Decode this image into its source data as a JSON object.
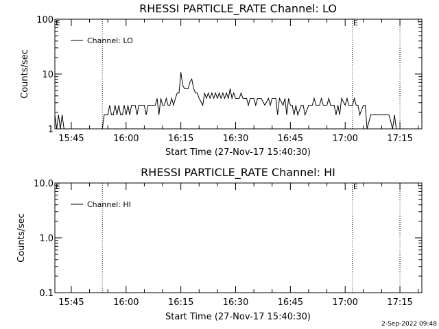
{
  "chart_data": [
    {
      "type": "line",
      "title": "RHESSI PARTICLE_RATE Channel: LO",
      "xlabel": "Start Time (27-Nov-17 15:40:30)",
      "ylabel": "Counts/sec",
      "y_scale": "log",
      "ylim": [
        1,
        100
      ],
      "y_ticks": [
        1,
        10,
        100
      ],
      "y_tick_labels": [
        "1",
        "10",
        "100"
      ],
      "xlim": [
        "15:40:30",
        "17:21:00"
      ],
      "x_ticks": [
        "15:45",
        "16:00",
        "16:15",
        "16:30",
        "16:45",
        "17:00",
        "17:15"
      ],
      "legend": {
        "entries": [
          "Channel: LO"
        ],
        "position": "top-left"
      },
      "markers": [
        {
          "time": "15:40:30",
          "label": "E"
        },
        {
          "time": "15:53:30",
          "label": ""
        },
        {
          "time": "17:02:00",
          "label": "E"
        },
        {
          "time": "17:15:00",
          "label": ""
        }
      ],
      "series": [
        {
          "name": "Channel: LO",
          "x": [
            "15:40:30",
            "15:41:00",
            "15:41:30",
            "15:42:00",
            "15:42:30",
            "15:43:00",
            "15:53:30",
            "15:54:00",
            "15:55:00",
            "15:55:30",
            "15:56:00",
            "15:56:30",
            "15:57:00",
            "15:57:30",
            "15:58:00",
            "15:58:30",
            "15:59:00",
            "15:59:30",
            "16:00:00",
            "16:00:30",
            "16:01:00",
            "16:01:30",
            "16:02:00",
            "16:02:30",
            "16:03:00",
            "16:03:30",
            "16:04:00",
            "16:05:00",
            "16:05:30",
            "16:06:00",
            "16:07:00",
            "16:08:00",
            "16:08:30",
            "16:09:00",
            "16:09:30",
            "16:10:00",
            "16:10:30",
            "16:11:00",
            "16:11:30",
            "16:12:00",
            "16:12:30",
            "16:13:00",
            "16:13:30",
            "16:14:00",
            "16:14:30",
            "16:15:00",
            "16:15:30",
            "16:16:00",
            "16:17:00",
            "16:17:30",
            "16:18:00",
            "16:18:30",
            "16:19:00",
            "16:19:30",
            "16:20:00",
            "16:21:00",
            "16:21:30",
            "16:22:00",
            "16:22:30",
            "16:23:00",
            "16:23:30",
            "16:24:00",
            "16:24:30",
            "16:25:00",
            "16:25:30",
            "16:26:00",
            "16:26:30",
            "16:27:00",
            "16:27:30",
            "16:28:00",
            "16:28:30",
            "16:29:00",
            "16:29:30",
            "16:30:00",
            "16:31:00",
            "16:31:30",
            "16:32:00",
            "16:33:00",
            "16:33:30",
            "16:34:00",
            "16:35:00",
            "16:35:30",
            "16:36:00",
            "16:37:00",
            "16:38:00",
            "16:39:00",
            "16:39:30",
            "16:40:00",
            "16:41:00",
            "16:41:30",
            "16:42:00",
            "16:43:00",
            "16:43:30",
            "16:44:00",
            "16:44:30",
            "16:45:00",
            "16:45:30",
            "16:46:00",
            "16:46:30",
            "16:47:00",
            "16:48:00",
            "16:48:30",
            "16:49:00",
            "16:50:00",
            "16:50:30",
            "16:51:00",
            "16:51:30",
            "16:52:00",
            "16:53:00",
            "16:53:30",
            "16:54:00",
            "16:55:00",
            "16:55:30",
            "16:56:00",
            "16:57:00",
            "16:57:30",
            "16:58:00",
            "16:58:30",
            "16:59:00",
            "17:00:00",
            "17:00:30",
            "17:01:00",
            "17:02:00",
            "17:02:30",
            "17:03:00",
            "17:03:30",
            "17:04:00",
            "17:05:00",
            "17:05:30",
            "17:06:00",
            "17:07:00",
            "17:08:00",
            "17:08:30",
            "17:09:00",
            "17:10:00",
            "17:11:00",
            "17:12:00",
            "17:13:00",
            "17:13:30",
            "17:14:00"
          ],
          "y": [
            1.8,
            1.0,
            1.8,
            1.0,
            1.8,
            1.0,
            1.0,
            1.8,
            1.8,
            2.7,
            1.8,
            1.8,
            2.7,
            1.8,
            2.7,
            1.8,
            1.8,
            2.7,
            1.8,
            2.7,
            1.8,
            2.7,
            2.7,
            2.7,
            1.8,
            2.7,
            2.7,
            2.7,
            1.8,
            2.7,
            2.7,
            2.7,
            3.6,
            1.8,
            3.6,
            2.7,
            2.7,
            3.6,
            2.7,
            2.7,
            3.6,
            2.7,
            3.6,
            4.5,
            4.5,
            10.8,
            6.3,
            5.4,
            5.4,
            7.2,
            8.1,
            5.4,
            4.5,
            4.5,
            3.6,
            2.7,
            4.5,
            3.6,
            4.5,
            3.6,
            4.5,
            3.6,
            4.5,
            3.6,
            4.5,
            3.6,
            4.5,
            3.6,
            4.5,
            3.6,
            5.4,
            3.6,
            4.5,
            3.6,
            3.6,
            4.5,
            3.6,
            3.6,
            2.7,
            3.6,
            3.6,
            2.7,
            3.6,
            3.6,
            2.7,
            3.6,
            2.7,
            3.6,
            3.6,
            1.8,
            3.6,
            2.7,
            3.6,
            1.8,
            3.6,
            2.7,
            2.7,
            1.8,
            2.7,
            1.8,
            2.7,
            2.7,
            1.8,
            2.7,
            2.7,
            2.7,
            3.6,
            2.7,
            2.7,
            3.6,
            2.7,
            2.7,
            3.6,
            2.7,
            2.7,
            1.8,
            2.7,
            1.8,
            3.6,
            2.7,
            3.6,
            2.7,
            2.7,
            3.6,
            2.7,
            2.7,
            1.8,
            2.7,
            2.7,
            1.0,
            1.8,
            1.8,
            1.8,
            1.8,
            1.8,
            1.8,
            1.8,
            1.0,
            1.8,
            1.0
          ]
        }
      ]
    },
    {
      "type": "line",
      "title": "RHESSI PARTICLE_RATE Channel: HI",
      "xlabel": "Start Time (27-Nov-17 15:40:30)",
      "ylabel": "Counts/sec",
      "y_scale": "log",
      "ylim": [
        0.1,
        10
      ],
      "y_ticks": [
        0.1,
        1,
        10
      ],
      "y_tick_labels": [
        "0.1",
        "1.0",
        "10.0"
      ],
      "xlim": [
        "15:40:30",
        "17:21:00"
      ],
      "x_ticks": [
        "15:45",
        "16:00",
        "16:15",
        "16:30",
        "16:45",
        "17:00",
        "17:15"
      ],
      "legend": {
        "entries": [
          "Channel: HI"
        ],
        "position": "top-left"
      },
      "markers": [
        {
          "time": "15:40:30",
          "label": "E"
        },
        {
          "time": "15:53:30",
          "label": ""
        },
        {
          "time": "17:02:00",
          "label": "E"
        },
        {
          "time": "17:15:00",
          "label": ""
        }
      ],
      "series": [
        {
          "name": "Channel: HI",
          "x": [],
          "y": []
        }
      ]
    }
  ],
  "footer": {
    "timestamp": "2-Sep-2022 09:48"
  }
}
